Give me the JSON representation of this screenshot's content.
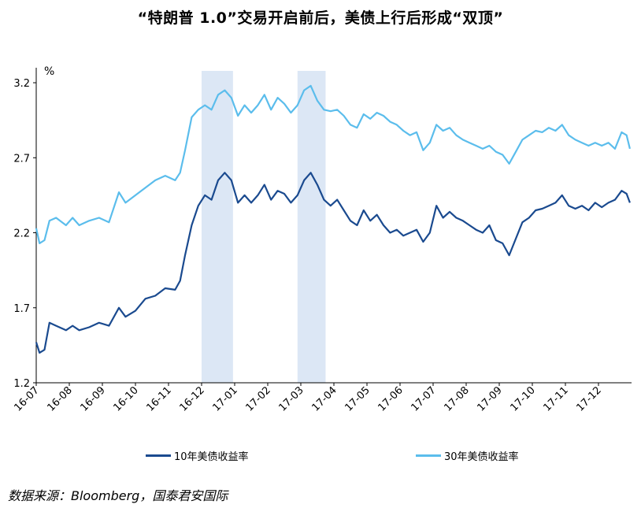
{
  "chart_data": {
    "type": "line",
    "title": "“特朗普 1.0”交易开启前后，美债上行后形成“双顶”",
    "ylabel": "%",
    "xlabel": "",
    "ylim": [
      1.2,
      3.3
    ],
    "y_ticks": [
      "1.2",
      "1.7",
      "2.2",
      "2.7",
      "3.2"
    ],
    "y_tick_values": [
      1.2,
      1.7,
      2.2,
      2.7,
      3.2
    ],
    "x_ticks": [
      "16-07",
      "16-08",
      "16-09",
      "16-10",
      "16-11",
      "16-12",
      "17-01",
      "17-02",
      "17-03",
      "17-04",
      "17-05",
      "17-06",
      "17-07",
      "17-08",
      "17-09",
      "17-10",
      "17-11",
      "17-12"
    ],
    "x_range_months": [
      0,
      18
    ],
    "grid": false,
    "legend_position": "bottom",
    "shaded_ranges": [
      {
        "start_month": 5.0,
        "end_month": 5.95
      },
      {
        "start_month": 7.9,
        "end_month": 8.75
      }
    ],
    "series": [
      {
        "name": "10年美债收益率",
        "color": "#1a4a8f",
        "points": [
          [
            0.0,
            1.47
          ],
          [
            0.1,
            1.4
          ],
          [
            0.25,
            1.42
          ],
          [
            0.4,
            1.6
          ],
          [
            0.6,
            1.58
          ],
          [
            0.9,
            1.55
          ],
          [
            1.1,
            1.58
          ],
          [
            1.3,
            1.55
          ],
          [
            1.6,
            1.57
          ],
          [
            1.9,
            1.6
          ],
          [
            2.2,
            1.58
          ],
          [
            2.5,
            1.7
          ],
          [
            2.7,
            1.64
          ],
          [
            3.0,
            1.68
          ],
          [
            3.3,
            1.76
          ],
          [
            3.6,
            1.78
          ],
          [
            3.9,
            1.83
          ],
          [
            4.2,
            1.82
          ],
          [
            4.35,
            1.88
          ],
          [
            4.5,
            2.05
          ],
          [
            4.7,
            2.25
          ],
          [
            4.9,
            2.38
          ],
          [
            5.1,
            2.45
          ],
          [
            5.3,
            2.42
          ],
          [
            5.5,
            2.55
          ],
          [
            5.7,
            2.6
          ],
          [
            5.9,
            2.55
          ],
          [
            6.1,
            2.4
          ],
          [
            6.3,
            2.45
          ],
          [
            6.5,
            2.4
          ],
          [
            6.7,
            2.45
          ],
          [
            6.9,
            2.52
          ],
          [
            7.1,
            2.42
          ],
          [
            7.3,
            2.48
          ],
          [
            7.5,
            2.46
          ],
          [
            7.7,
            2.4
          ],
          [
            7.9,
            2.45
          ],
          [
            8.1,
            2.55
          ],
          [
            8.3,
            2.6
          ],
          [
            8.5,
            2.52
          ],
          [
            8.7,
            2.42
          ],
          [
            8.9,
            2.38
          ],
          [
            9.1,
            2.42
          ],
          [
            9.3,
            2.35
          ],
          [
            9.5,
            2.28
          ],
          [
            9.7,
            2.25
          ],
          [
            9.9,
            2.35
          ],
          [
            10.1,
            2.28
          ],
          [
            10.3,
            2.32
          ],
          [
            10.5,
            2.25
          ],
          [
            10.7,
            2.2
          ],
          [
            10.9,
            2.22
          ],
          [
            11.1,
            2.18
          ],
          [
            11.3,
            2.2
          ],
          [
            11.5,
            2.22
          ],
          [
            11.7,
            2.14
          ],
          [
            11.9,
            2.2
          ],
          [
            12.1,
            2.38
          ],
          [
            12.3,
            2.3
          ],
          [
            12.5,
            2.34
          ],
          [
            12.7,
            2.3
          ],
          [
            12.9,
            2.28
          ],
          [
            13.1,
            2.25
          ],
          [
            13.3,
            2.22
          ],
          [
            13.5,
            2.2
          ],
          [
            13.7,
            2.25
          ],
          [
            13.9,
            2.15
          ],
          [
            14.1,
            2.13
          ],
          [
            14.3,
            2.05
          ],
          [
            14.5,
            2.16
          ],
          [
            14.7,
            2.27
          ],
          [
            14.9,
            2.3
          ],
          [
            15.1,
            2.35
          ],
          [
            15.3,
            2.36
          ],
          [
            15.5,
            2.38
          ],
          [
            15.7,
            2.4
          ],
          [
            15.9,
            2.45
          ],
          [
            16.1,
            2.38
          ],
          [
            16.3,
            2.36
          ],
          [
            16.5,
            2.38
          ],
          [
            16.7,
            2.35
          ],
          [
            16.9,
            2.4
          ],
          [
            17.1,
            2.37
          ],
          [
            17.3,
            2.4
          ],
          [
            17.5,
            2.42
          ],
          [
            17.7,
            2.48
          ],
          [
            17.85,
            2.46
          ],
          [
            17.95,
            2.4
          ]
        ]
      },
      {
        "name": "30年美债收益率",
        "color": "#5bbdec",
        "points": [
          [
            0.0,
            2.23
          ],
          [
            0.1,
            2.13
          ],
          [
            0.25,
            2.15
          ],
          [
            0.4,
            2.28
          ],
          [
            0.6,
            2.3
          ],
          [
            0.9,
            2.25
          ],
          [
            1.1,
            2.3
          ],
          [
            1.3,
            2.25
          ],
          [
            1.6,
            2.28
          ],
          [
            1.9,
            2.3
          ],
          [
            2.2,
            2.27
          ],
          [
            2.5,
            2.47
          ],
          [
            2.7,
            2.4
          ],
          [
            3.0,
            2.45
          ],
          [
            3.3,
            2.5
          ],
          [
            3.6,
            2.55
          ],
          [
            3.9,
            2.58
          ],
          [
            4.2,
            2.55
          ],
          [
            4.35,
            2.6
          ],
          [
            4.5,
            2.75
          ],
          [
            4.7,
            2.97
          ],
          [
            4.9,
            3.02
          ],
          [
            5.1,
            3.05
          ],
          [
            5.3,
            3.02
          ],
          [
            5.5,
            3.12
          ],
          [
            5.7,
            3.15
          ],
          [
            5.9,
            3.1
          ],
          [
            6.1,
            2.98
          ],
          [
            6.3,
            3.05
          ],
          [
            6.5,
            3.0
          ],
          [
            6.7,
            3.05
          ],
          [
            6.9,
            3.12
          ],
          [
            7.1,
            3.02
          ],
          [
            7.3,
            3.1
          ],
          [
            7.5,
            3.06
          ],
          [
            7.7,
            3.0
          ],
          [
            7.9,
            3.05
          ],
          [
            8.1,
            3.15
          ],
          [
            8.3,
            3.18
          ],
          [
            8.5,
            3.08
          ],
          [
            8.7,
            3.02
          ],
          [
            8.9,
            3.01
          ],
          [
            9.1,
            3.02
          ],
          [
            9.3,
            2.98
          ],
          [
            9.5,
            2.92
          ],
          [
            9.7,
            2.9
          ],
          [
            9.9,
            2.99
          ],
          [
            10.1,
            2.96
          ],
          [
            10.3,
            3.0
          ],
          [
            10.5,
            2.98
          ],
          [
            10.7,
            2.94
          ],
          [
            10.9,
            2.92
          ],
          [
            11.1,
            2.88
          ],
          [
            11.3,
            2.85
          ],
          [
            11.5,
            2.87
          ],
          [
            11.7,
            2.75
          ],
          [
            11.9,
            2.8
          ],
          [
            12.1,
            2.92
          ],
          [
            12.3,
            2.88
          ],
          [
            12.5,
            2.9
          ],
          [
            12.7,
            2.85
          ],
          [
            12.9,
            2.82
          ],
          [
            13.1,
            2.8
          ],
          [
            13.3,
            2.78
          ],
          [
            13.5,
            2.76
          ],
          [
            13.7,
            2.78
          ],
          [
            13.9,
            2.74
          ],
          [
            14.1,
            2.72
          ],
          [
            14.3,
            2.66
          ],
          [
            14.5,
            2.74
          ],
          [
            14.7,
            2.82
          ],
          [
            14.9,
            2.85
          ],
          [
            15.1,
            2.88
          ],
          [
            15.3,
            2.87
          ],
          [
            15.5,
            2.9
          ],
          [
            15.7,
            2.88
          ],
          [
            15.9,
            2.92
          ],
          [
            16.1,
            2.85
          ],
          [
            16.3,
            2.82
          ],
          [
            16.5,
            2.8
          ],
          [
            16.7,
            2.78
          ],
          [
            16.9,
            2.8
          ],
          [
            17.1,
            2.78
          ],
          [
            17.3,
            2.8
          ],
          [
            17.5,
            2.76
          ],
          [
            17.7,
            2.87
          ],
          [
            17.85,
            2.85
          ],
          [
            17.95,
            2.76
          ]
        ]
      }
    ]
  },
  "source_note": "数据来源：Bloomberg，国泰君安国际"
}
